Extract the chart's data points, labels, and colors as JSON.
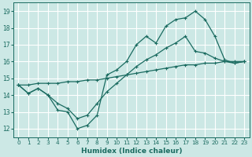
{
  "xlabel": "Humidex (Indice chaleur)",
  "bg_color": "#cce8e5",
  "grid_color": "#ffffff",
  "line_color": "#1a6b60",
  "xlim": [
    -0.5,
    23.5
  ],
  "ylim": [
    11.5,
    19.5
  ],
  "xticks": [
    0,
    1,
    2,
    3,
    4,
    5,
    6,
    7,
    8,
    9,
    10,
    11,
    12,
    13,
    14,
    15,
    16,
    17,
    18,
    19,
    20,
    21,
    22,
    23
  ],
  "yticks": [
    12,
    13,
    14,
    15,
    16,
    17,
    18,
    19
  ],
  "line1_x": [
    0,
    1,
    2,
    3,
    4,
    5,
    6,
    7,
    8,
    9,
    10,
    11,
    12,
    13,
    14,
    15,
    16,
    17,
    18,
    19,
    20,
    21,
    22,
    23
  ],
  "line1_y": [
    14.6,
    14.1,
    14.4,
    14.0,
    13.1,
    13.0,
    12.0,
    12.2,
    12.8,
    15.2,
    15.5,
    16.0,
    17.0,
    17.5,
    17.1,
    18.1,
    18.5,
    18.6,
    19.0,
    18.5,
    17.5,
    16.1,
    15.9,
    16.0
  ],
  "line2_x": [
    0,
    1,
    2,
    3,
    4,
    5,
    6,
    7,
    8,
    9,
    10,
    11,
    12,
    13,
    14,
    15,
    16,
    17,
    18,
    19,
    20,
    21,
    22,
    23
  ],
  "line2_y": [
    14.6,
    14.1,
    14.4,
    14.0,
    13.5,
    13.2,
    12.6,
    12.8,
    13.5,
    14.2,
    14.7,
    15.2,
    15.7,
    16.1,
    16.4,
    16.8,
    17.1,
    17.5,
    16.6,
    16.5,
    16.2,
    16.0,
    15.9,
    16.0
  ],
  "line3_x": [
    0,
    1,
    2,
    3,
    4,
    5,
    6,
    7,
    8,
    9,
    10,
    11,
    12,
    13,
    14,
    15,
    16,
    17,
    18,
    19,
    20,
    21,
    22,
    23
  ],
  "line3_y": [
    14.6,
    14.6,
    14.7,
    14.7,
    14.7,
    14.8,
    14.8,
    14.9,
    14.9,
    15.0,
    15.1,
    15.2,
    15.3,
    15.4,
    15.5,
    15.6,
    15.7,
    15.8,
    15.8,
    15.9,
    15.9,
    16.0,
    16.0,
    16.0
  ]
}
